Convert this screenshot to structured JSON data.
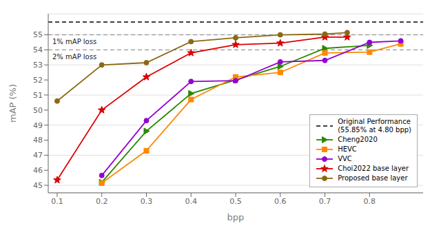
{
  "chart_data": {
    "type": "line",
    "xlabel": "bpp",
    "ylabel": "mAP (%)",
    "xlim": [
      0.08,
      0.92
    ],
    "ylim": [
      44.5,
      56.4
    ],
    "xticks": [
      0.1,
      0.2,
      0.3,
      0.4,
      0.5,
      0.6,
      0.7,
      0.8
    ],
    "yticks": [
      45,
      46,
      47,
      48,
      49,
      50,
      51,
      52,
      53,
      54,
      55
    ],
    "grid": "y",
    "legend": "lower right",
    "series": [
      {
        "name": "Original Performance\n(55.85% at 4.80 bpp)",
        "type": "hline",
        "values": [
          55.85
        ],
        "color": "black",
        "line_style": "dashed"
      },
      {
        "name": "Cheng2020",
        "color": "#2a8800",
        "marker": "triangle-right",
        "x": [
          0.2,
          0.3,
          0.4,
          0.5,
          0.6,
          0.7,
          0.8
        ],
        "values": [
          45.2,
          48.6,
          51.1,
          52.0,
          52.9,
          54.1,
          54.3
        ]
      },
      {
        "name": "HEVC",
        "color": "#ff8800",
        "marker": "square",
        "x": [
          0.2,
          0.3,
          0.4,
          0.5,
          0.6,
          0.7,
          0.8,
          0.87
        ],
        "values": [
          45.15,
          47.3,
          50.7,
          52.2,
          52.5,
          53.8,
          53.85,
          54.4
        ]
      },
      {
        "name": "VVC",
        "color": "#9400d3",
        "marker": "circle",
        "x": [
          0.2,
          0.3,
          0.4,
          0.5,
          0.6,
          0.7,
          0.8,
          0.87
        ],
        "values": [
          45.65,
          49.3,
          51.9,
          51.95,
          53.2,
          53.3,
          54.5,
          54.6
        ]
      },
      {
        "name": "Choi2022 base layer",
        "color": "#dd0000",
        "marker": "star",
        "x": [
          0.1,
          0.2,
          0.3,
          0.4,
          0.5,
          0.6,
          0.7,
          0.75
        ],
        "values": [
          45.35,
          50.0,
          52.2,
          53.8,
          54.35,
          54.45,
          54.85,
          54.85
        ]
      },
      {
        "name": "Proposed base layer",
        "color": "#8b6914",
        "marker": "circle",
        "x": [
          0.1,
          0.2,
          0.3,
          0.4,
          0.5,
          0.6,
          0.7,
          0.75
        ],
        "values": [
          50.6,
          53.0,
          53.15,
          54.55,
          54.8,
          55.0,
          55.05,
          55.15
        ]
      }
    ],
    "annotations": [
      {
        "text": "1% mAP loss",
        "y": 55.0,
        "color": "gray",
        "line_style": "dashed"
      },
      {
        "text": "2% mAP loss",
        "y": 54.0,
        "color": "gray",
        "line_style": "dashed"
      }
    ]
  }
}
